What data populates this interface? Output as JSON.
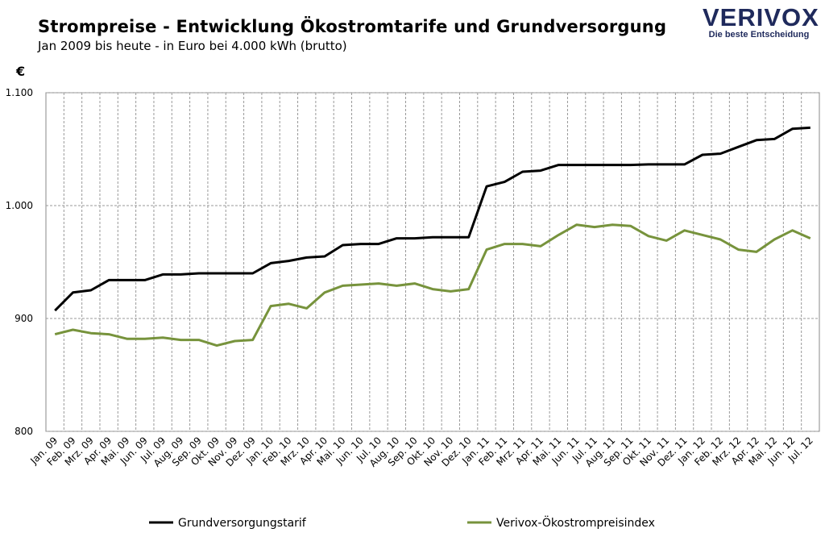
{
  "header": {
    "title": "Strompreise - Entwicklung Ökostromtarife und  Grundversorgung",
    "subtitle": "Jan 2009 bis heute - in Euro bei 4.000 kWh (brutto)"
  },
  "logo": {
    "brand": "VERIVOX",
    "tagline": "Die beste Entscheidung",
    "colors": {
      "text": "#1f2a5c",
      "accent": "#f08a1c"
    }
  },
  "chart_data": {
    "type": "line",
    "title": "Strompreise - Entwicklung Ökostromtarife und  Grundversorgung",
    "subtitle": "Jan 2009 bis heute - in Euro bei 4.000 kWh (brutto)",
    "ylabel": "€",
    "ylim": [
      800,
      1100
    ],
    "yticks": [
      "800",
      "900",
      "1.000",
      "1.100"
    ],
    "ytick_values": [
      800,
      900,
      1000,
      1100
    ],
    "grid": true,
    "legend": "bottom",
    "categories": [
      "Jan. 09",
      "Feb. 09",
      "Mrz. 09",
      "Apr. 09",
      "Mai. 09",
      "Jun. 09",
      "Jul. 09",
      "Aug. 09",
      "Sep. 09",
      "Okt. 09",
      "Nov. 09",
      "Dez. 09",
      "Jan. 10",
      "Feb. 10",
      "Mrz. 10",
      "Apr. 10",
      "Mai. 10",
      "Jun. 10",
      "Jul. 10",
      "Aug. 10",
      "Sep. 10",
      "Okt. 10",
      "Nov. 10",
      "Dez. 10",
      "Jan. 11",
      "Feb. 11",
      "Mrz. 11",
      "Apr. 11",
      "Mai. 11",
      "Jun. 11",
      "Jul. 11",
      "Aug. 11",
      "Sep. 11",
      "Okt. 11",
      "Nov. 11",
      "Dez. 11",
      "Jan. 12",
      "Feb. 12",
      "Mrz. 12",
      "Apr. 12",
      "Mai. 12",
      "Jun. 12",
      "Jul. 12"
    ],
    "series": [
      {
        "name": "Grundversorgungstarif",
        "color": "#000000",
        "values": [
          907,
          923,
          925,
          934,
          934,
          934,
          939,
          939,
          940,
          940,
          940,
          940,
          949,
          951,
          954,
          955,
          965,
          966,
          966,
          971,
          971,
          972,
          972,
          972,
          1017,
          1021,
          1030,
          1031,
          1036,
          1036,
          1036,
          1036,
          1036,
          1036.5,
          1036.5,
          1036.5,
          1045,
          1046,
          1052,
          1058,
          1059,
          1068,
          1069
        ]
      },
      {
        "name": "Verivox-Ökostrompreisindex",
        "color": "#77933c",
        "values": [
          886,
          890,
          887,
          886,
          882,
          882,
          883,
          881,
          881,
          876,
          880,
          881,
          911,
          913,
          909,
          923,
          929,
          930,
          931,
          929,
          931,
          926,
          924,
          926,
          961,
          966,
          966,
          964,
          974,
          983,
          981,
          983,
          982,
          973,
          969,
          978,
          974,
          970,
          961,
          959,
          970,
          978,
          971
        ]
      }
    ]
  }
}
